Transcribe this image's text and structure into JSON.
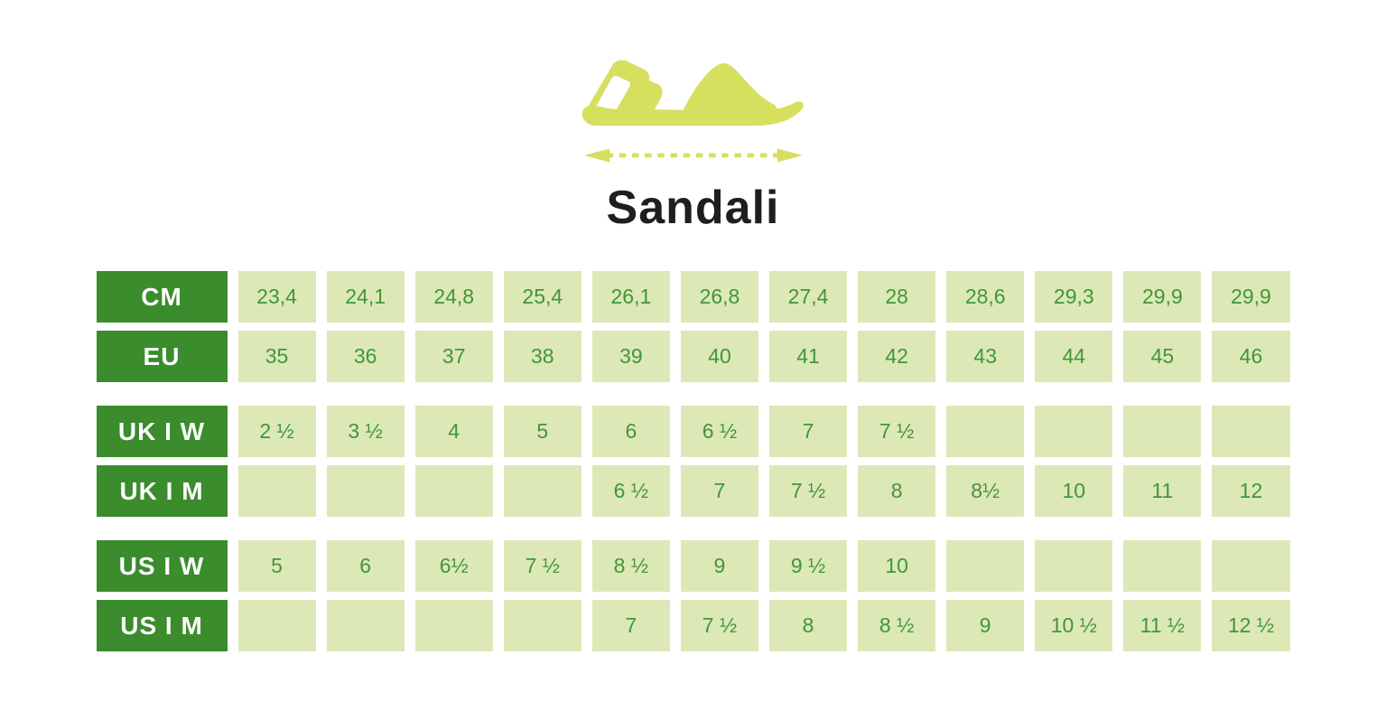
{
  "title": "Sandali",
  "icons": {
    "sandal": "sandal-silhouette",
    "arrow": "length-measure-double-arrow"
  },
  "colors": {
    "accent_yellow_green": "#d7df5e",
    "header_bg": "#3a8c2d",
    "header_text": "#ffffff",
    "cell_bg": "#dde8b7",
    "cell_text": "#41963a",
    "title_text": "#1e1e1c",
    "background": "#ffffff"
  },
  "chart_data": {
    "type": "table",
    "title": "Sandali",
    "columns": 12,
    "row_groups": [
      [
        {
          "label": "CM",
          "values": [
            "23,4",
            "24,1",
            "24,8",
            "25,4",
            "26,1",
            "26,8",
            "27,4",
            "28",
            "28,6",
            "29,3",
            "29,9",
            "29,9"
          ]
        },
        {
          "label": "EU",
          "values": [
            "35",
            "36",
            "37",
            "38",
            "39",
            "40",
            "41",
            "42",
            "43",
            "44",
            "45",
            "46"
          ]
        }
      ],
      [
        {
          "label": "UK I W",
          "values": [
            "2 ½",
            "3 ½",
            "4",
            "5",
            "6",
            "6 ½",
            "7",
            "7 ½",
            "",
            "",
            "",
            ""
          ]
        },
        {
          "label": "UK I M",
          "values": [
            "",
            "",
            "",
            "",
            "6 ½",
            "7",
            "7 ½",
            "8",
            "8½",
            "10",
            "11",
            "12"
          ]
        }
      ],
      [
        {
          "label": "US I W",
          "values": [
            "5",
            "6",
            "6½",
            "7 ½",
            "8 ½",
            "9",
            "9 ½",
            "10",
            "",
            "",
            "",
            ""
          ]
        },
        {
          "label": "US I M",
          "values": [
            "",
            "",
            "",
            "",
            "7",
            "7 ½",
            "8",
            "8 ½",
            "9",
            "10 ½",
            "11 ½",
            "12 ½"
          ]
        }
      ]
    ]
  }
}
